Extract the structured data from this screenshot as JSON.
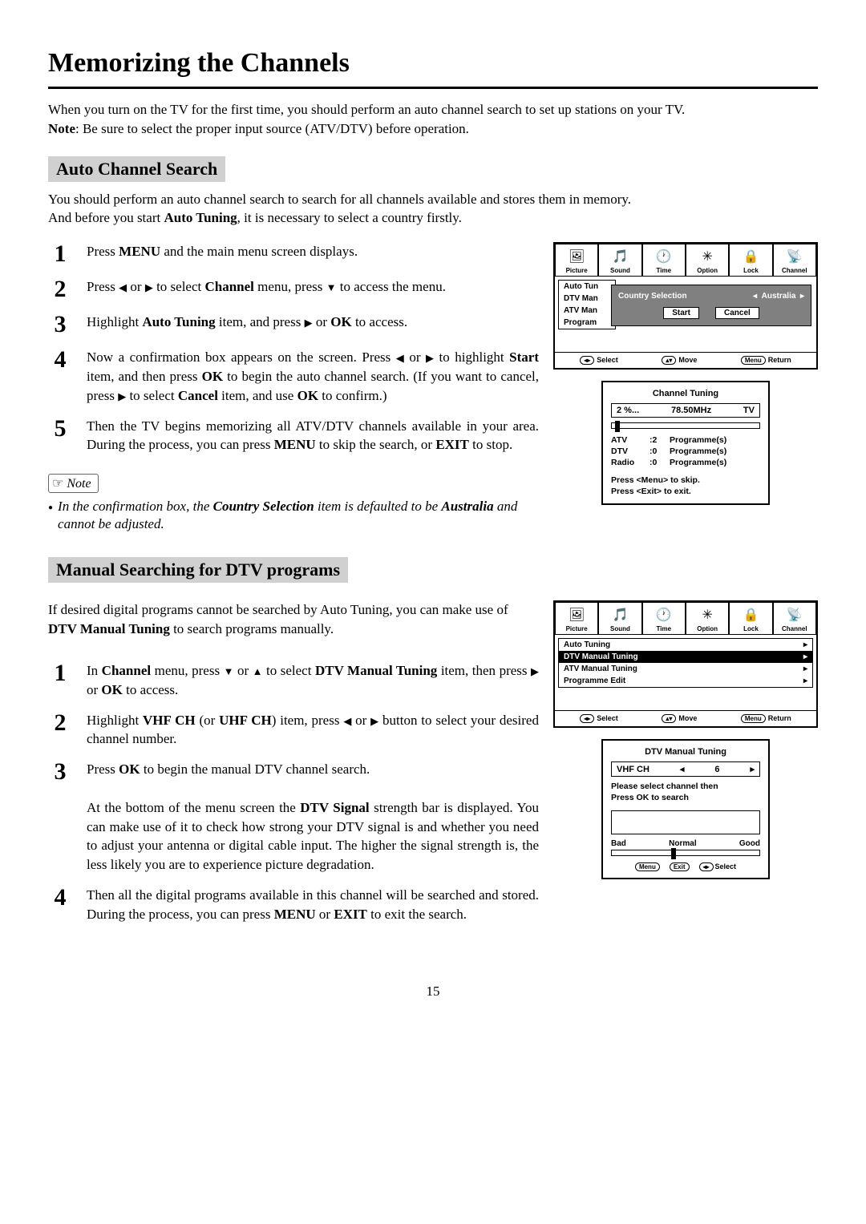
{
  "title": "Memorizing the Channels",
  "intro_line1": "When you turn on the TV for the first time, you should perform an auto channel search to set up stations on your TV.",
  "intro_note_label": "Note",
  "intro_note_text": ":  Be sure to select the proper input source (ATV/DTV) before operation.",
  "section1": {
    "header": "Auto Channel Search",
    "intro1": "You should perform an auto channel search to search for all channels available and stores them in memory.",
    "intro2_pre": "And before you start ",
    "intro2_b": "Auto Tuning",
    "intro2_post": ", it is necessary to select a country firstly.",
    "steps": {
      "s1": "Press <b>MENU</b> and the main menu screen displays.",
      "s2": "Press  <span class='arrow'>◀</span> or <span class='arrow'>▶</span> to select <b>Channel</b> menu,  press <span class='arrow'>▼</span> to access the menu.",
      "s3": "Highlight <b>Auto Tuning</b> item, and press  <span class='arrow'>▶</span> or <b>OK</b> to access.",
      "s4": "Now a confirmation box appears on the screen. Press  <span class='arrow'>◀</span> or <span class='arrow'>▶</span> to highlight <b>Start</b> item, and then press <b>OK</b> to begin the auto channel search. (If you want to cancel, press  <span class='arrow'>▶</span> to select <b>Cancel</b> item, and use <b>OK</b>  to confirm.)",
      "s5": "Then the TV begins memorizing all ATV/DTV channels available in your area. During the process, you can press <b>MENU</b> to skip the search, or <b>EXIT</b> to stop."
    },
    "note_label": "Note",
    "note_text": "In the confirmation box, the <b>Country Selection</b> item is defaulted to be <b>Australia</b> and cannot be adjusted."
  },
  "section2": {
    "header": "Manual Searching for DTV programs",
    "intro": "If desired digital programs cannot be searched by Auto Tuning, you can make use of <b>DTV Manual Tuning</b> to search programs manually.",
    "steps": {
      "s1": "In <b>Channel</b> menu,  press <span class='arrow'>▼</span> or <span class='arrow'>▲</span>  to select <b>DTV Manual Tuning</b> item, then press <span class='arrow'>▶</span> or <b>OK</b> to access.",
      "s2": "Highlight <b>VHF CH</b> (or <b>UHF CH</b>) item, press  <span class='arrow'>◀</span> or <span class='arrow'>▶</span> button to select your desired channel number.",
      "s3": "Press <b>OK</b> to begin the manual DTV channel search.",
      "s3b": "At the bottom of the menu screen the <b>DTV Signal</b> strength bar is displayed. You can make use of it to check how strong your DTV signal is and whether you need to adjust your antenna or digital cable input. The higher the signal strength is, the less likely you are to experience picture degradation.",
      "s4": "Then all the digital programs available in this channel will be searched and stored. During the process, you can press <b>MENU</b> or <b>EXIT</b> to exit the search."
    }
  },
  "osd_tabs": [
    "Picture",
    "Sound",
    "Time",
    "Option",
    "Lock",
    "Channel"
  ],
  "osd_icons": [
    "🖼",
    "🎵",
    "🕐",
    "✳",
    "🔒",
    "📡"
  ],
  "osd1": {
    "items": [
      "Auto Tun",
      "DTV Man",
      "ATV Man",
      "Program"
    ],
    "popup_label": "Country Selection",
    "popup_value": "Australia",
    "btn_start": "Start",
    "btn_cancel": "Cancel"
  },
  "osd_hints": {
    "select": "Select",
    "move": "Move",
    "return": "Return"
  },
  "tuning": {
    "title": "Channel   Tuning",
    "percent": "2  %...",
    "freq": "78.50MHz",
    "mode": "TV",
    "rows": [
      {
        "a": "ATV",
        "b": ":2",
        "c": "Programme(s)"
      },
      {
        "a": "DTV",
        "b": ":0",
        "c": "Programme(s)"
      },
      {
        "a": "Radio",
        "b": ":0",
        "c": "Programme(s)"
      }
    ],
    "msg1": "Press <Menu> to skip.",
    "msg2": "Press <Exit> to exit."
  },
  "osd2": {
    "items": [
      "Auto Tuning",
      "DTV Manual Tuning",
      "ATV Manual Tuning",
      "Programme Edit"
    ]
  },
  "dtv": {
    "title": "DTV Manual Tuning",
    "ch_label": "VHF  CH",
    "ch_val": "6",
    "msg1": "Please select channel then",
    "msg2": "Press OK to search",
    "bad": "Bad",
    "normal": "Normal",
    "good": "Good",
    "sel": "Select"
  },
  "page": "15"
}
